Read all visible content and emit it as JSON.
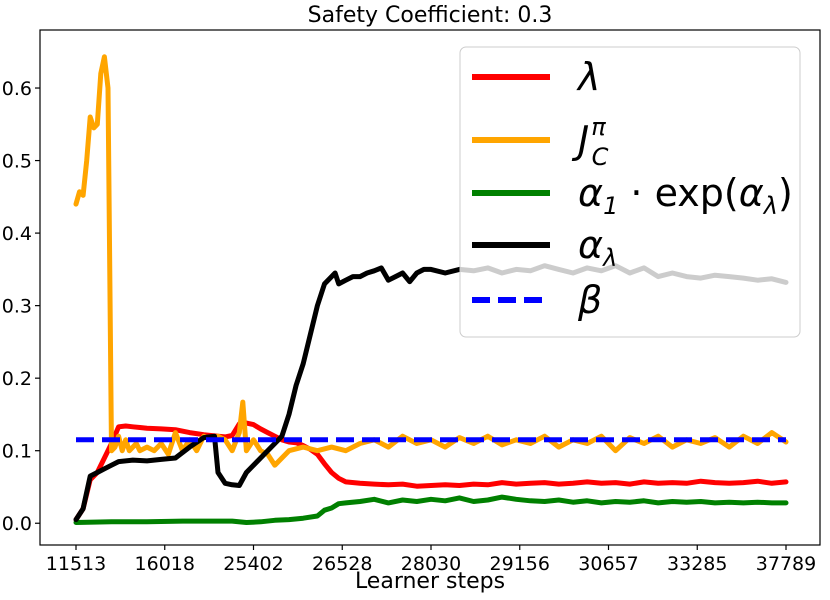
{
  "chart_data": {
    "type": "line",
    "title": "Safety Coefficient: 0.3",
    "xlabel": "Learner steps",
    "ylabel": "",
    "x_tick_labels": [
      "11513",
      "16018",
      "25402",
      "26528",
      "28030",
      "29156",
      "30657",
      "33285",
      "37789"
    ],
    "x_range": [
      0,
      100
    ],
    "ylim": [
      -0.03,
      0.68
    ],
    "y_ticks": [
      0.0,
      0.1,
      0.2,
      0.3,
      0.4,
      0.5,
      0.6
    ],
    "y_tick_labels": [
      "0.0",
      "0.1",
      "0.2",
      "0.3",
      "0.4",
      "0.5",
      "0.6"
    ],
    "legend_position": "top-right",
    "series": [
      {
        "name": "λ",
        "color": "#ff0000",
        "style": "solid",
        "x": [
          0,
          1,
          2,
          3,
          4,
          5,
          6,
          7,
          8,
          9,
          10,
          12,
          14,
          16,
          18,
          20,
          21,
          22,
          23,
          24,
          25,
          26,
          27,
          28,
          29,
          30,
          31,
          32,
          33,
          34,
          35,
          36,
          37,
          38,
          40,
          42,
          44,
          46,
          48,
          50,
          52,
          54,
          56,
          58,
          60,
          62,
          64,
          66,
          68,
          70,
          72,
          74,
          76,
          78,
          80,
          82,
          84,
          86,
          88,
          90,
          92,
          94,
          96,
          98,
          100
        ],
        "values": [
          0.005,
          0.02,
          0.06,
          0.07,
          0.09,
          0.11,
          0.133,
          0.134,
          0.133,
          0.132,
          0.131,
          0.13,
          0.129,
          0.125,
          0.122,
          0.12,
          0.119,
          0.121,
          0.137,
          0.138,
          0.136,
          0.13,
          0.125,
          0.12,
          0.115,
          0.112,
          0.111,
          0.107,
          0.102,
          0.095,
          0.082,
          0.07,
          0.062,
          0.057,
          0.055,
          0.054,
          0.053,
          0.054,
          0.051,
          0.052,
          0.053,
          0.052,
          0.054,
          0.053,
          0.056,
          0.054,
          0.055,
          0.056,
          0.054,
          0.055,
          0.057,
          0.055,
          0.056,
          0.054,
          0.057,
          0.055,
          0.056,
          0.055,
          0.058,
          0.056,
          0.055,
          0.056,
          0.058,
          0.055,
          0.057
        ]
      },
      {
        "name": "J_C^π",
        "color": "#ffa500",
        "style": "solid",
        "x": [
          0,
          0.5,
          1,
          1.5,
          2,
          2.5,
          3,
          3.5,
          4,
          4.5,
          5,
          5.5,
          6,
          6.5,
          7,
          7.5,
          8,
          8.5,
          9,
          10,
          11,
          12,
          13,
          14,
          15,
          16,
          17,
          18,
          19,
          20,
          21,
          22,
          23,
          23.5,
          24,
          25,
          26,
          27,
          28,
          29,
          30,
          32,
          34,
          36,
          38,
          40,
          42,
          44,
          46,
          48,
          50,
          52,
          54,
          56,
          58,
          60,
          62,
          64,
          66,
          68,
          70,
          72,
          74,
          76,
          78,
          80,
          82,
          84,
          86,
          88,
          90,
          92,
          94,
          96,
          98,
          100
        ],
        "values": [
          0.44,
          0.457,
          0.452,
          0.5,
          0.56,
          0.545,
          0.55,
          0.62,
          0.643,
          0.6,
          0.1,
          0.105,
          0.12,
          0.1,
          0.115,
          0.1,
          0.105,
          0.11,
          0.1,
          0.105,
          0.1,
          0.11,
          0.095,
          0.125,
          0.1,
          0.115,
          0.1,
          0.12,
          0.115,
          0.12,
          0.115,
          0.1,
          0.125,
          0.167,
          0.1,
          0.115,
          0.1,
          0.095,
          0.08,
          0.09,
          0.1,
          0.105,
          0.1,
          0.105,
          0.1,
          0.11,
          0.115,
          0.105,
          0.12,
          0.11,
          0.115,
          0.105,
          0.118,
          0.11,
          0.12,
          0.108,
          0.115,
          0.11,
          0.12,
          0.105,
          0.115,
          0.11,
          0.12,
          0.1,
          0.118,
          0.11,
          0.12,
          0.105,
          0.115,
          0.11,
          0.118,
          0.105,
          0.12,
          0.11,
          0.125,
          0.112
        ]
      },
      {
        "name": "α₁ · exp(α_λ)",
        "color": "#008000",
        "style": "solid",
        "x": [
          0,
          5,
          10,
          15,
          20,
          22,
          24,
          26,
          28,
          30,
          32,
          34,
          35,
          36,
          37,
          38,
          40,
          42,
          44,
          46,
          48,
          50,
          52,
          54,
          56,
          58,
          60,
          62,
          64,
          66,
          68,
          70,
          72,
          74,
          76,
          78,
          80,
          82,
          84,
          86,
          88,
          90,
          92,
          94,
          96,
          98,
          100
        ],
        "values": [
          0.001,
          0.002,
          0.002,
          0.003,
          0.003,
          0.003,
          0.001,
          0.002,
          0.004,
          0.005,
          0.007,
          0.01,
          0.018,
          0.021,
          0.027,
          0.028,
          0.03,
          0.033,
          0.028,
          0.032,
          0.03,
          0.033,
          0.031,
          0.035,
          0.03,
          0.032,
          0.036,
          0.033,
          0.031,
          0.03,
          0.032,
          0.029,
          0.031,
          0.028,
          0.03,
          0.029,
          0.031,
          0.028,
          0.03,
          0.029,
          0.03,
          0.028,
          0.029,
          0.028,
          0.029,
          0.028,
          0.028
        ]
      },
      {
        "name": "α_λ",
        "color": "#000000",
        "style": "solid",
        "x": [
          0,
          1,
          2,
          3,
          4,
          5,
          6,
          8,
          10,
          12,
          14,
          16,
          18,
          19.5,
          20,
          21,
          22,
          23,
          24,
          25,
          26,
          27,
          28,
          29,
          30,
          31,
          32,
          33,
          34,
          35,
          36,
          36.5,
          37,
          38,
          39,
          40,
          41,
          42,
          43,
          44,
          45,
          46,
          47,
          48,
          49,
          50,
          52,
          54,
          56,
          58,
          60,
          62,
          64,
          66,
          68,
          70,
          72,
          74,
          76,
          78,
          80,
          82,
          84,
          86,
          88,
          90,
          92,
          94,
          96,
          98,
          100
        ],
        "values": [
          0.005,
          0.02,
          0.065,
          0.07,
          0.075,
          0.08,
          0.085,
          0.087,
          0.086,
          0.088,
          0.09,
          0.105,
          0.118,
          0.12,
          0.07,
          0.055,
          0.053,
          0.052,
          0.07,
          0.08,
          0.09,
          0.1,
          0.11,
          0.12,
          0.15,
          0.19,
          0.22,
          0.26,
          0.3,
          0.33,
          0.34,
          0.345,
          0.33,
          0.335,
          0.34,
          0.34,
          0.345,
          0.348,
          0.352,
          0.335,
          0.34,
          0.345,
          0.333,
          0.345,
          0.35,
          0.35,
          0.345,
          0.35,
          0.348,
          0.352,
          0.345,
          0.35,
          0.348,
          0.355,
          0.35,
          0.345,
          0.352,
          0.348,
          0.355,
          0.345,
          0.352,
          0.34,
          0.345,
          0.34,
          0.338,
          0.342,
          0.34,
          0.338,
          0.335,
          0.337,
          0.332
        ]
      },
      {
        "name": "β",
        "color": "#0000ff",
        "style": "dashed",
        "x": [
          0,
          100
        ],
        "values": [
          0.115,
          0.115
        ]
      }
    ]
  }
}
